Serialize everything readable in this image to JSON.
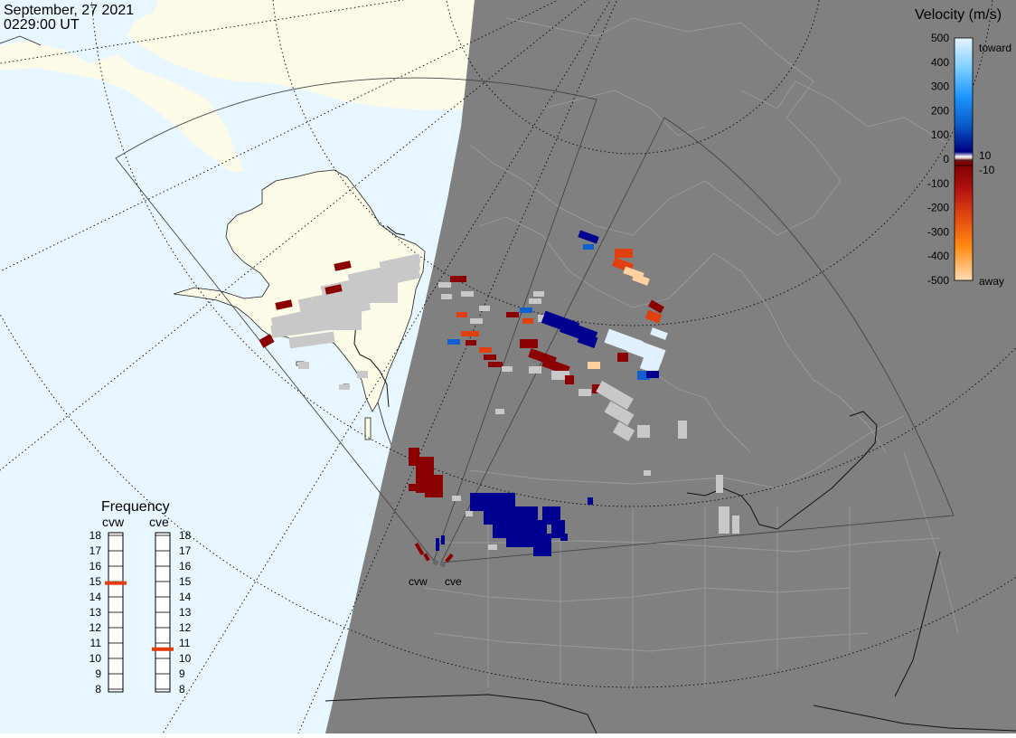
{
  "header": {
    "date": "September, 27 2021",
    "time": "0229:00 UT"
  },
  "legend": {
    "title": "Velocity (m/s)",
    "ticks": [
      "500",
      "400",
      "300",
      "200",
      "100",
      "0",
      "-100",
      "-200",
      "-300",
      "-400",
      "-500"
    ],
    "label_toward": "toward",
    "label_away": "away",
    "label_pos": "10",
    "label_neg": "-10"
  },
  "frequency": {
    "title": "Frequency",
    "radars": [
      {
        "name": "cvw",
        "value_mhz": 14.9
      },
      {
        "name": "cve",
        "value_mhz": 10.6
      }
    ],
    "scale": [
      "18",
      "17",
      "16",
      "15",
      "14",
      "13",
      "12",
      "11",
      "10",
      "9",
      "8"
    ],
    "marker_color": "#e04010"
  },
  "radar_sites": [
    {
      "name": "cvw"
    },
    {
      "name": "cve"
    }
  ],
  "colors": {
    "ocean": "#e8f6ff",
    "land": "#fcfbe8",
    "night": "#808080",
    "ground_scatter": "#c8c8c8",
    "toward_max": "#e0f0ff",
    "toward_mid": "#1060d0",
    "toward_low": "#000090",
    "away_low": "#8b0000",
    "away_mid": "#e04010",
    "away_max": "#ffd0a0"
  }
}
